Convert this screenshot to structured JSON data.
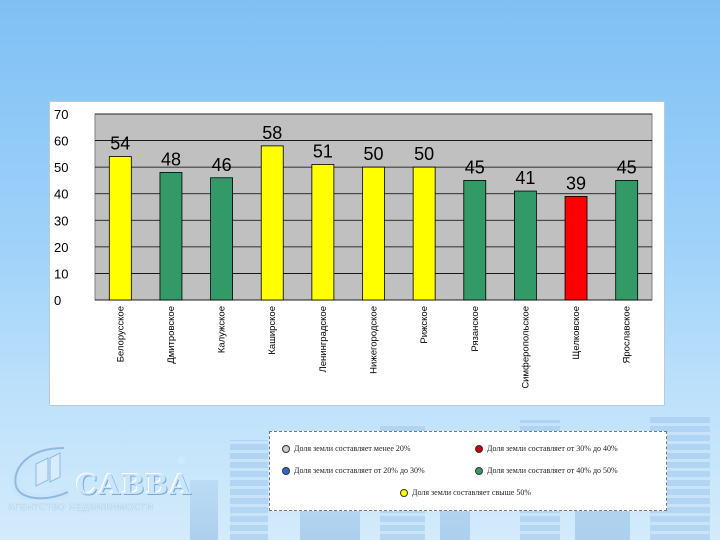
{
  "chart_data": {
    "type": "bar",
    "categories": [
      "Белорусское",
      "Дмитровское",
      "Калужское",
      "Каширское",
      "Ленинградское",
      "Нижегородское",
      "Рижское",
      "Рязанское",
      "Симферопольское",
      "Щелковское",
      "Ярославское"
    ],
    "values": [
      54,
      48,
      46,
      58,
      51,
      50,
      50,
      45,
      41,
      39,
      45
    ],
    "colors": [
      "#ffff00",
      "#339966",
      "#339966",
      "#ffff00",
      "#ffff00",
      "#ffff00",
      "#ffff00",
      "#339966",
      "#339966",
      "#ff0000",
      "#339966"
    ],
    "ylim": [
      0,
      70
    ],
    "yticks": [
      0,
      10,
      20,
      30,
      40,
      50,
      60,
      70
    ],
    "grid": true,
    "plot_background": "#c0c0c0",
    "data_labels": true
  },
  "legend": {
    "items": [
      {
        "label": "Доля земли составляет менее 20%",
        "color": "#cccccc"
      },
      {
        "label": "Доля земли составляет от 30% до 40%",
        "color": "#cc0000"
      },
      {
        "label": "Доля земли составляет от 20% до 30%",
        "color": "#3366cc"
      },
      {
        "label": "Доля земли составляет от 40% до 50%",
        "color": "#339966"
      },
      {
        "label": "Доля земли составляет свыше 50%",
        "color": "#ffff00"
      }
    ]
  },
  "logo": {
    "word": "САВВА",
    "subtitle": "АГЕНТСТВО НЕДВИЖИМОСТИ",
    "registered": "®"
  }
}
